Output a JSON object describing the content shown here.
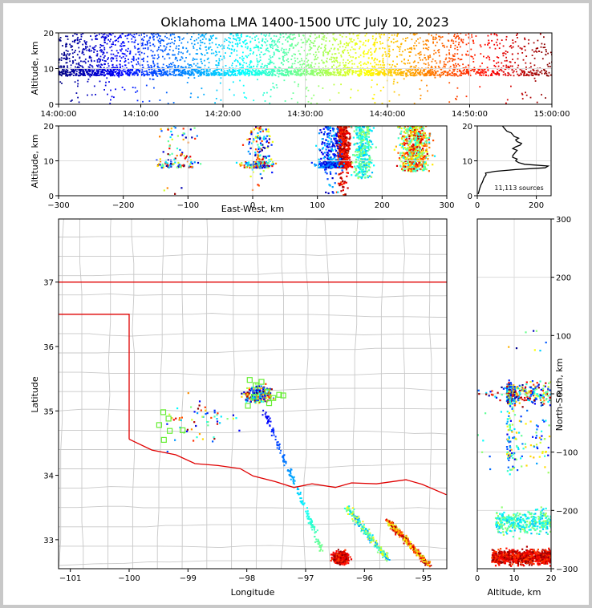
{
  "chart_data": [
    {
      "type": "scatter",
      "panel": "altitude-vs-time",
      "title": "Oklahoma LMA 1400-1500 UTC July 10, 2023",
      "xlabel": "",
      "ylabel": "Altitude, km",
      "x_ticks": [
        "14:00:00",
        "14:10:00",
        "14:20:00",
        "14:30:00",
        "14:40:00",
        "14:50:00",
        "15:00:00"
      ],
      "xlim_minutes": [
        0,
        60
      ],
      "ylim": [
        0,
        20
      ],
      "y_ticks": [
        0,
        10,
        20
      ],
      "color_encoding": "time",
      "density_bands": [
        {
          "t0": 0,
          "t1": 8,
          "density": 1.0
        },
        {
          "t0": 8,
          "t1": 22,
          "density": 0.8
        },
        {
          "t0": 22,
          "t1": 40,
          "density": 0.85
        },
        {
          "t0": 40,
          "t1": 50,
          "density": 0.7
        },
        {
          "t0": 50,
          "t1": 60,
          "density": 0.4
        }
      ]
    },
    {
      "type": "scatter",
      "panel": "altitude-vs-east-west",
      "xlabel": "East-West, km",
      "ylabel": "Altitude, km",
      "xlim": [
        -300,
        300
      ],
      "x_ticks": [
        -300,
        -200,
        -100,
        0,
        100,
        200,
        300
      ],
      "ylim": [
        0,
        20
      ],
      "y_ticks": [
        0,
        10,
        20
      ]
    },
    {
      "type": "line",
      "panel": "altitude-histogram",
      "xlim": [
        0,
        250
      ],
      "x_ticks": [
        0,
        200
      ],
      "ylim": [
        0,
        20
      ],
      "y_ticks": [
        0,
        10,
        20
      ],
      "annotation": "11,113 sources",
      "profile": [
        {
          "y": 0.5,
          "x": 3
        },
        {
          "y": 1,
          "x": 5
        },
        {
          "y": 2,
          "x": 8
        },
        {
          "y": 3,
          "x": 12
        },
        {
          "y": 4,
          "x": 18
        },
        {
          "y": 5,
          "x": 22
        },
        {
          "y": 6,
          "x": 30
        },
        {
          "y": 6.5,
          "x": 28
        },
        {
          "y": 7,
          "x": 60
        },
        {
          "y": 7.5,
          "x": 130
        },
        {
          "y": 8,
          "x": 230
        },
        {
          "y": 8.5,
          "x": 240
        },
        {
          "y": 9,
          "x": 160
        },
        {
          "y": 9.5,
          "x": 140
        },
        {
          "y": 10,
          "x": 130
        },
        {
          "y": 10.5,
          "x": 135
        },
        {
          "y": 11,
          "x": 120
        },
        {
          "y": 11.5,
          "x": 120
        },
        {
          "y": 12,
          "x": 125
        },
        {
          "y": 12.5,
          "x": 130
        },
        {
          "y": 13,
          "x": 135
        },
        {
          "y": 13.5,
          "x": 120
        },
        {
          "y": 14,
          "x": 130
        },
        {
          "y": 14.5,
          "x": 145
        },
        {
          "y": 15,
          "x": 150
        },
        {
          "y": 15.5,
          "x": 135
        },
        {
          "y": 16,
          "x": 130
        },
        {
          "y": 16.5,
          "x": 140
        },
        {
          "y": 17,
          "x": 125
        },
        {
          "y": 17.5,
          "x": 120
        },
        {
          "y": 18,
          "x": 115
        },
        {
          "y": 18.5,
          "x": 100
        },
        {
          "y": 19,
          "x": 95
        },
        {
          "y": 19.5,
          "x": 90
        },
        {
          "y": 20,
          "x": 85
        }
      ]
    },
    {
      "type": "scatter",
      "panel": "plan-view-map",
      "xlabel": "Longitude",
      "ylabel": "Latitude",
      "xlim": [
        -101.2,
        -94.6
      ],
      "x_ticks": [
        -101,
        -100,
        -99,
        -98,
        -97,
        -96,
        -95
      ],
      "ylim": [
        32.55,
        37.98
      ],
      "y_ticks": [
        33,
        34,
        35,
        36,
        37
      ],
      "border_color": "#e00000",
      "county_line_color": "#c8c8c8",
      "stations": [
        {
          "lon": -97.95,
          "lat": 35.48
        },
        {
          "lon": -97.85,
          "lat": 35.4
        },
        {
          "lon": -97.75,
          "lat": 35.45
        },
        {
          "lon": -97.65,
          "lat": 35.3
        },
        {
          "lon": -97.55,
          "lat": 35.2
        },
        {
          "lon": -97.45,
          "lat": 35.25
        },
        {
          "lon": -97.38,
          "lat": 35.24
        },
        {
          "lon": -97.62,
          "lat": 35.12
        },
        {
          "lon": -97.98,
          "lat": 35.08
        },
        {
          "lon": -97.88,
          "lat": 35.22
        },
        {
          "lon": -99.42,
          "lat": 34.98
        },
        {
          "lon": -99.33,
          "lat": 34.88
        },
        {
          "lon": -99.49,
          "lat": 34.78
        },
        {
          "lon": -99.31,
          "lat": 34.69
        },
        {
          "lon": -99.09,
          "lat": 34.7
        },
        {
          "lon": -99.41,
          "lat": 34.55
        }
      ]
    },
    {
      "type": "scatter",
      "panel": "north-south-vs-altitude",
      "xlabel": "Altitude, km",
      "ylabel": "North-South, km",
      "xlim": [
        0,
        20
      ],
      "x_ticks": [
        0,
        10,
        20
      ],
      "ylim": [
        -300,
        300
      ],
      "y_ticks": [
        -300,
        -200,
        -100,
        0,
        100,
        200,
        300
      ]
    }
  ]
}
